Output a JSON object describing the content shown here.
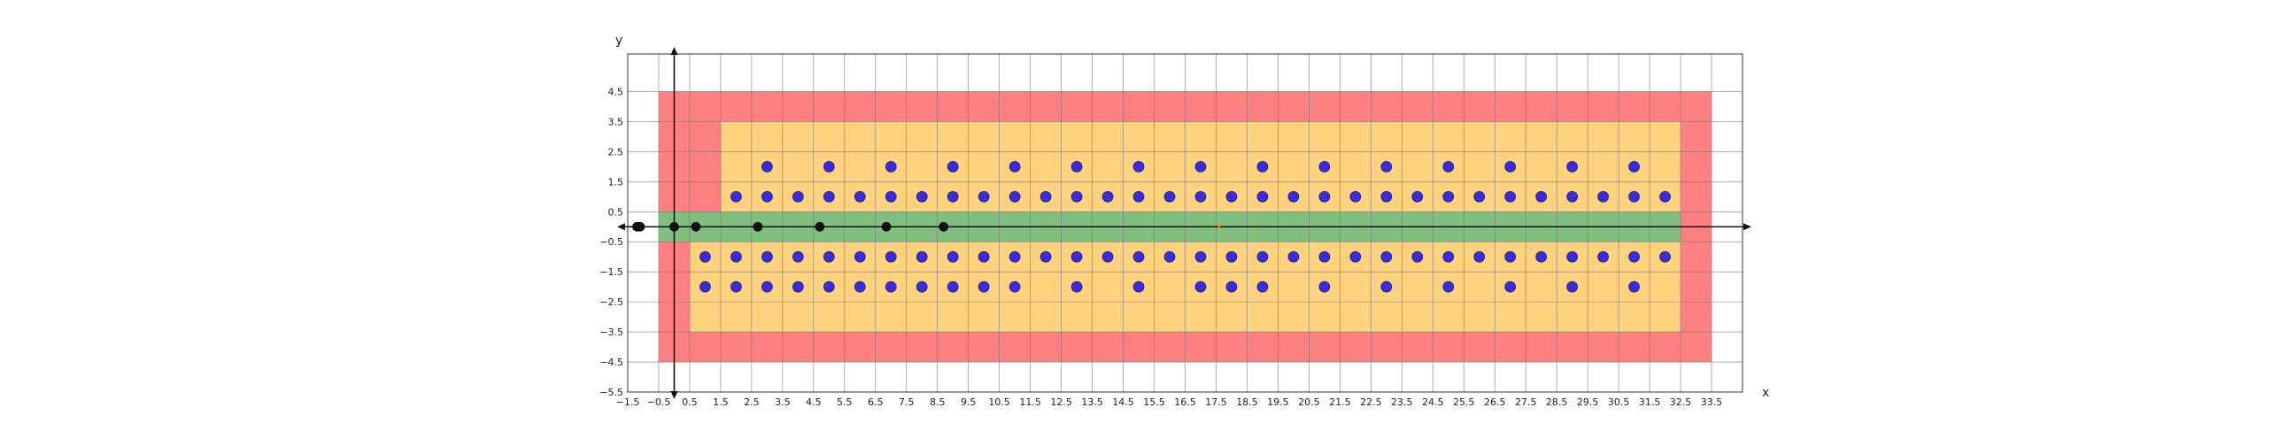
{
  "chart_data": {
    "type": "scatter",
    "title": "",
    "xlabel": "x",
    "ylabel": "y",
    "xlim": [
      -1.5,
      34.5
    ],
    "ylim": [
      -5.5,
      5.75
    ],
    "grid": true,
    "x_ticks": [
      -1.5,
      -0.5,
      0.5,
      1.5,
      2.5,
      3.5,
      4.5,
      5.5,
      6.5,
      7.5,
      8.5,
      9.5,
      10.5,
      11.5,
      12.5,
      13.5,
      14.5,
      15.5,
      16.5,
      17.5,
      18.5,
      19.5,
      20.5,
      21.5,
      22.5,
      23.5,
      24.5,
      25.5,
      26.5,
      27.5,
      28.5,
      29.5,
      30.5,
      31.5,
      32.5,
      33.5
    ],
    "y_ticks": [
      -5.5,
      -4.5,
      -3.5,
      -2.5,
      -1.5,
      -0.5,
      0.5,
      1.5,
      2.5,
      3.5,
      4.5
    ],
    "regions": [
      {
        "name": "red-zone",
        "color": "#ff8080",
        "x": [
          -0.5,
          33.5
        ],
        "y": [
          -4.5,
          4.5
        ]
      },
      {
        "name": "orange-zone-upper",
        "color": "#ffd280",
        "x": [
          1.5,
          32.5
        ],
        "y": [
          0.5,
          3.5
        ]
      },
      {
        "name": "orange-zone-lower",
        "color": "#ffd280",
        "x": [
          0.5,
          32.5
        ],
        "y": [
          -3.5,
          -0.5
        ]
      },
      {
        "name": "green-corridor",
        "color": "#80bf80",
        "x": [
          -0.5,
          32.5
        ],
        "y": [
          -0.5,
          0.5
        ]
      }
    ],
    "series": [
      {
        "color": "#3a2bdc",
        "marker": "circle",
        "points": [
          [
            3,
            2
          ],
          [
            5,
            2
          ],
          [
            7,
            2
          ],
          [
            9,
            2
          ],
          [
            11,
            2
          ],
          [
            13,
            2
          ],
          [
            15,
            2
          ],
          [
            17,
            2
          ],
          [
            19,
            2
          ],
          [
            21,
            2
          ],
          [
            23,
            2
          ],
          [
            25,
            2
          ],
          [
            27,
            2
          ],
          [
            29,
            2
          ],
          [
            31,
            2
          ],
          [
            2,
            1
          ],
          [
            3,
            1
          ],
          [
            4,
            1
          ],
          [
            5,
            1
          ],
          [
            6,
            1
          ],
          [
            7,
            1
          ],
          [
            8,
            1
          ],
          [
            9,
            1
          ],
          [
            10,
            1
          ],
          [
            11,
            1
          ],
          [
            12,
            1
          ],
          [
            13,
            1
          ],
          [
            14,
            1
          ],
          [
            15,
            1
          ],
          [
            16,
            1
          ],
          [
            17,
            1
          ],
          [
            18,
            1
          ],
          [
            19,
            1
          ],
          [
            20,
            1
          ],
          [
            21,
            1
          ],
          [
            22,
            1
          ],
          [
            23,
            1
          ],
          [
            24,
            1
          ],
          [
            25,
            1
          ],
          [
            26,
            1
          ],
          [
            27,
            1
          ],
          [
            28,
            1
          ],
          [
            29,
            1
          ],
          [
            30,
            1
          ],
          [
            31,
            1
          ],
          [
            32,
            1
          ],
          [
            1,
            -1
          ],
          [
            2,
            -1
          ],
          [
            3,
            -1
          ],
          [
            4,
            -1
          ],
          [
            5,
            -1
          ],
          [
            6,
            -1
          ],
          [
            7,
            -1
          ],
          [
            8,
            -1
          ],
          [
            9,
            -1
          ],
          [
            10,
            -1
          ],
          [
            11,
            -1
          ],
          [
            12,
            -1
          ],
          [
            13,
            -1
          ],
          [
            14,
            -1
          ],
          [
            15,
            -1
          ],
          [
            16,
            -1
          ],
          [
            17,
            -1
          ],
          [
            18,
            -1
          ],
          [
            19,
            -1
          ],
          [
            20,
            -1
          ],
          [
            21,
            -1
          ],
          [
            22,
            -1
          ],
          [
            23,
            -1
          ],
          [
            24,
            -1
          ],
          [
            25,
            -1
          ],
          [
            26,
            -1
          ],
          [
            27,
            -1
          ],
          [
            28,
            -1
          ],
          [
            29,
            -1
          ],
          [
            30,
            -1
          ],
          [
            31,
            -1
          ],
          [
            32,
            -1
          ],
          [
            1,
            -2
          ],
          [
            2,
            -2
          ],
          [
            3,
            -2
          ],
          [
            4,
            -2
          ],
          [
            5,
            -2
          ],
          [
            6,
            -2
          ],
          [
            7,
            -2
          ],
          [
            8,
            -2
          ],
          [
            9,
            -2
          ],
          [
            10,
            -2
          ],
          [
            11,
            -2
          ],
          [
            13,
            -2
          ],
          [
            15,
            -2
          ],
          [
            17,
            -2
          ],
          [
            18,
            -2
          ],
          [
            19,
            -2
          ],
          [
            21,
            -2
          ],
          [
            23,
            -2
          ],
          [
            25,
            -2
          ],
          [
            27,
            -2
          ],
          [
            29,
            -2
          ],
          [
            31,
            -2
          ]
        ]
      },
      {
        "color": "#111111",
        "marker": "circle",
        "points": [
          [
            -1.2,
            0
          ],
          [
            -1.1,
            0
          ],
          [
            0,
            0
          ],
          [
            0.7,
            0
          ],
          [
            2.7,
            0
          ],
          [
            4.7,
            0
          ],
          [
            6.85,
            0
          ],
          [
            8.7,
            0
          ]
        ]
      },
      {
        "color": "#ff8c00",
        "marker": "x",
        "points": [
          [
            17.6,
            0
          ]
        ]
      }
    ]
  }
}
